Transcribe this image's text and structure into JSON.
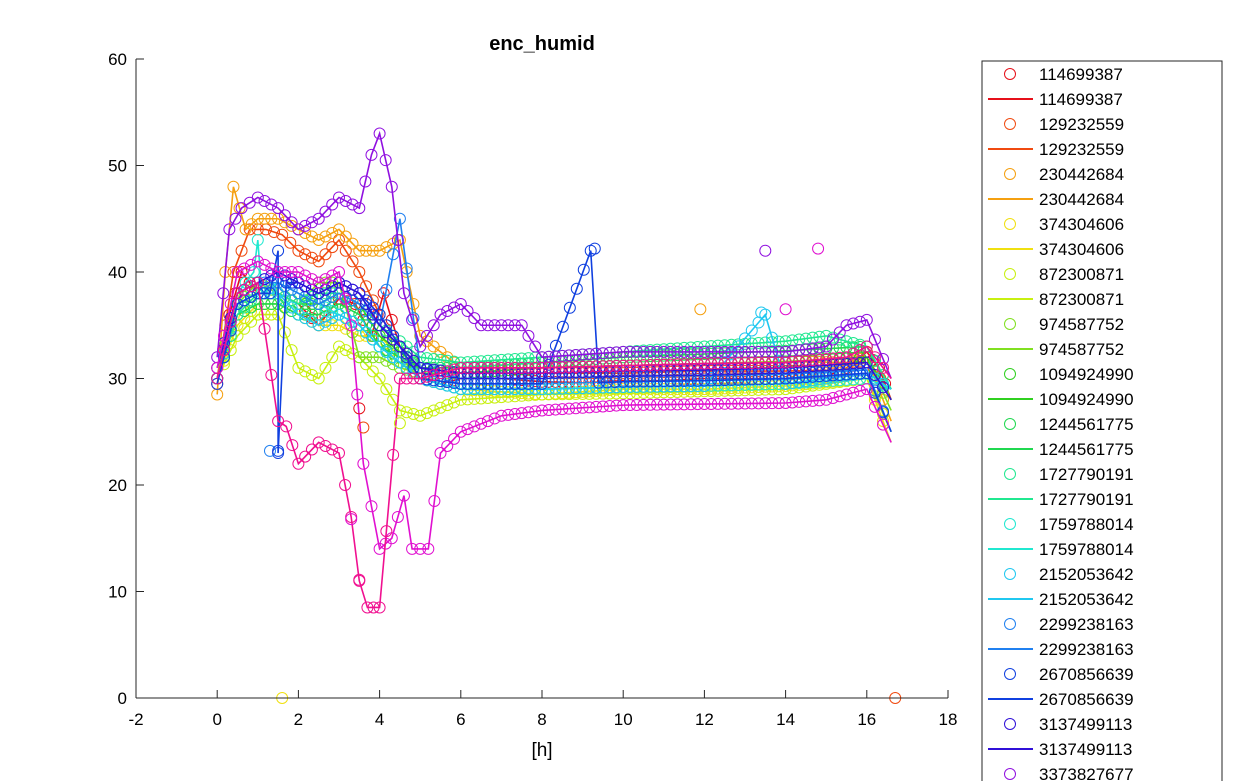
{
  "chart_data": {
    "type": "scatter",
    "title": "enc_humid",
    "xlabel": "[h]",
    "ylabel": "",
    "xlim": [
      -2,
      18
    ],
    "ylim": [
      0,
      60
    ],
    "x_ticks": [
      "-2",
      "0",
      "2",
      "4",
      "6",
      "8",
      "10",
      "12",
      "14",
      "16",
      "18"
    ],
    "y_ticks": [
      "0",
      "10",
      "20",
      "30",
      "40",
      "50",
      "60"
    ],
    "grid": false,
    "legend_position": "right-outside",
    "legend": [
      {
        "label": "114699387",
        "marker": "circle",
        "color": "#e6101a"
      },
      {
        "label": "114699387",
        "marker": "line",
        "color": "#e6101a"
      },
      {
        "label": "129232559",
        "marker": "circle",
        "color": "#f04a10"
      },
      {
        "label": "129232559",
        "marker": "line",
        "color": "#f04a10"
      },
      {
        "label": "230442684",
        "marker": "circle",
        "color": "#f5a010"
      },
      {
        "label": "230442684",
        "marker": "line",
        "color": "#f5a010"
      },
      {
        "label": "374304606",
        "marker": "circle",
        "color": "#f0e010"
      },
      {
        "label": "374304606",
        "marker": "line",
        "color": "#f0e010"
      },
      {
        "label": "872300871",
        "marker": "circle",
        "color": "#c8f010"
      },
      {
        "label": "872300871",
        "marker": "line",
        "color": "#c8f010"
      },
      {
        "label": "974587752",
        "marker": "circle",
        "color": "#80e020"
      },
      {
        "label": "974587752",
        "marker": "line",
        "color": "#80e020"
      },
      {
        "label": "1094924990",
        "marker": "circle",
        "color": "#30d020"
      },
      {
        "label": "1094924990",
        "marker": "line",
        "color": "#30d020"
      },
      {
        "label": "1244561775",
        "marker": "circle",
        "color": "#20d850"
      },
      {
        "label": "1244561775",
        "marker": "line",
        "color": "#20d850"
      },
      {
        "label": "1727790191",
        "marker": "circle",
        "color": "#20e890"
      },
      {
        "label": "1727790191",
        "marker": "line",
        "color": "#20e890"
      },
      {
        "label": "1759788014",
        "marker": "circle",
        "color": "#20e8d0"
      },
      {
        "label": "1759788014",
        "marker": "line",
        "color": "#20e8d0"
      },
      {
        "label": "2152053642",
        "marker": "circle",
        "color": "#20c8f0"
      },
      {
        "label": "2152053642",
        "marker": "line",
        "color": "#20c8f0"
      },
      {
        "label": "2299238163",
        "marker": "circle",
        "color": "#2080f0"
      },
      {
        "label": "2299238163",
        "marker": "line",
        "color": "#2080f0"
      },
      {
        "label": "2670856639",
        "marker": "circle",
        "color": "#1040e0"
      },
      {
        "label": "2670856639",
        "marker": "line",
        "color": "#1040e0"
      },
      {
        "label": "3137499113",
        "marker": "circle",
        "color": "#3010d8"
      },
      {
        "label": "3137499113",
        "marker": "line",
        "color": "#3010d8"
      },
      {
        "label": "3373827677",
        "marker": "circle",
        "color": "#9010e0"
      }
    ],
    "series": [
      {
        "color": "#e6101a",
        "x": [
          0,
          0.3,
          0.6,
          1,
          1.5,
          2,
          2.5,
          3,
          3.4,
          3.8,
          4.1,
          4.5,
          5,
          5.5,
          6,
          7,
          8,
          9,
          10,
          11,
          12,
          13,
          14,
          15,
          15.5,
          16,
          16.3,
          16.6
        ],
        "y": [
          29.5,
          36,
          40,
          38,
          38,
          37,
          35,
          37.5,
          37,
          34,
          38,
          33,
          30,
          29.5,
          30,
          30,
          29.7,
          29.6,
          29.8,
          29.8,
          30,
          30,
          30,
          30.2,
          31,
          32.5,
          31,
          28
        ]
      },
      {
        "color": "#f04a10",
        "x": [
          0,
          0.4,
          0.8,
          1.2,
          1.6,
          2,
          2.5,
          3,
          3.5,
          4,
          4.5,
          5,
          6,
          8,
          10,
          12,
          14,
          15.5,
          16,
          16.5
        ],
        "y": [
          30,
          40,
          44,
          44,
          43.5,
          42,
          41,
          43,
          40,
          36,
          33,
          31,
          30.5,
          30.5,
          30.5,
          30.7,
          30.7,
          30.8,
          32,
          29
        ]
      },
      {
        "color": "#f5a010",
        "x": [
          0,
          0.2,
          0.4,
          0.7,
          1,
          1.5,
          2,
          2.5,
          3,
          3.5,
          4,
          4.5,
          5,
          6,
          8,
          10,
          12,
          14,
          15.5,
          16,
          16.6
        ],
        "y": [
          28.5,
          40,
          48,
          44,
          45,
          45,
          44,
          43,
          44,
          42,
          42,
          43,
          34,
          31,
          31,
          31.2,
          31.4,
          31.6,
          31.5,
          32,
          26
        ]
      },
      {
        "color": "#f0e010",
        "x": [
          0,
          0.5,
          1,
          1.5,
          2,
          2.5,
          3,
          3.5,
          4,
          5,
          6,
          8,
          10,
          12,
          14,
          16,
          16.6
        ],
        "y": [
          30,
          35,
          37,
          37,
          36,
          35,
          35,
          34,
          34,
          30,
          29,
          28.5,
          29,
          29,
          29.3,
          30,
          24
        ]
      },
      {
        "color": "#c8f010",
        "x": [
          0,
          0.5,
          1,
          1.5,
          2,
          2.5,
          3,
          3.5,
          4,
          4.5,
          5,
          6,
          8,
          10,
          12,
          14,
          16,
          16.6
        ],
        "y": [
          30,
          34,
          36,
          36,
          31,
          30,
          33,
          32,
          30,
          27,
          26.5,
          28,
          28.5,
          28.6,
          28.8,
          29,
          30,
          25
        ]
      },
      {
        "color": "#80e020",
        "x": [
          0,
          0.5,
          1,
          1.5,
          2,
          2.5,
          3,
          3.5,
          4,
          4.5,
          5,
          6,
          8,
          10,
          12,
          14,
          16,
          16.6
        ],
        "y": [
          31,
          37,
          39,
          38,
          37,
          39,
          39,
          32,
          32,
          31,
          30.5,
          30.5,
          31,
          31.2,
          31.4,
          31.6,
          32,
          27
        ]
      },
      {
        "color": "#30d020",
        "x": [
          0,
          0.5,
          1,
          1.5,
          2,
          2.5,
          3,
          3.5,
          4,
          5,
          6,
          8,
          10,
          12,
          14,
          16,
          16.6
        ],
        "y": [
          30,
          37,
          38,
          38,
          37,
          37,
          38,
          37,
          34,
          31,
          30.5,
          31,
          31.2,
          31.4,
          31.5,
          32,
          28
        ]
      },
      {
        "color": "#20d850",
        "x": [
          0,
          0.5,
          1,
          1.5,
          2,
          2.5,
          3,
          3.5,
          4,
          5,
          6,
          8,
          10,
          12,
          14,
          16,
          16.6
        ],
        "y": [
          30,
          36,
          37,
          37,
          36,
          36,
          37,
          36,
          33,
          31,
          31,
          31.5,
          32,
          32.3,
          32.6,
          33,
          29
        ]
      },
      {
        "color": "#20e890",
        "x": [
          0,
          0.5,
          1,
          1.5,
          2,
          2.5,
          3,
          3.5,
          4,
          5,
          6,
          8,
          10,
          12,
          14,
          15,
          16,
          16.6
        ],
        "y": [
          30,
          36,
          38,
          38,
          37,
          38,
          38,
          37,
          35,
          32,
          31.5,
          32,
          32.5,
          33,
          33.5,
          34,
          33,
          29
        ]
      },
      {
        "color": "#20e8d0",
        "x": [
          0,
          0.5,
          0.9,
          1,
          1.1,
          1.5,
          2,
          2.5,
          3,
          3.5,
          4,
          5,
          6,
          8,
          10,
          12,
          14,
          16,
          16.6
        ],
        "y": [
          30,
          38,
          40,
          43,
          38,
          39,
          38,
          37,
          36,
          35,
          33,
          30,
          29,
          29,
          29.2,
          29.3,
          29.5,
          30,
          29
        ]
      },
      {
        "color": "#20c8f0",
        "x": [
          0,
          0.5,
          1,
          1.5,
          2,
          2.5,
          3,
          3.5,
          4,
          5,
          6,
          8,
          10,
          12,
          13.5,
          14,
          16,
          16.6
        ],
        "y": [
          30,
          37,
          38,
          38,
          36,
          35,
          36,
          35,
          33,
          30,
          29,
          29,
          29.2,
          29.3,
          36,
          29.5,
          30.5,
          29
        ]
      },
      {
        "color": "#2080f0",
        "x": [
          0,
          0.5,
          1,
          1.5,
          2,
          2.5,
          3,
          3.5,
          4,
          4.5,
          5,
          6,
          8,
          10,
          12,
          14,
          16,
          16.6
        ],
        "y": [
          30,
          38,
          39,
          39,
          38,
          37,
          38,
          37,
          35,
          45,
          31,
          30,
          30,
          30.2,
          30.3,
          30.4,
          30.8,
          25
        ]
      },
      {
        "color": "#1040e0",
        "x": [
          0,
          0.5,
          1,
          1.3,
          1.5,
          1.5,
          1.7,
          2,
          2.5,
          3,
          3.5,
          4,
          5,
          6,
          8,
          9.2,
          9.4,
          10,
          12,
          14,
          16,
          16.6
        ],
        "y": [
          29.5,
          37,
          38,
          38,
          42,
          23,
          39,
          39,
          38,
          39,
          38,
          36,
          30,
          29.5,
          29.5,
          42,
          29.6,
          29.7,
          29.8,
          30,
          30.5,
          25
        ]
      },
      {
        "color": "#3010d8",
        "x": [
          0,
          0.5,
          1,
          1.5,
          2,
          2.5,
          3,
          3.5,
          4,
          5,
          6,
          8,
          10,
          12,
          14,
          16,
          16.6
        ],
        "y": [
          31,
          38,
          39,
          40,
          39,
          38,
          39,
          38,
          35,
          31,
          30.5,
          30.5,
          30.7,
          30.8,
          31,
          31.5,
          28
        ]
      },
      {
        "color": "#9010e0",
        "x": [
          0,
          0.3,
          0.6,
          1,
          1.5,
          2,
          2.5,
          3,
          3.5,
          3.8,
          4,
          4.3,
          4.6,
          5,
          5.5,
          6,
          6.5,
          7.5,
          8,
          10,
          12,
          14,
          15,
          15.5,
          16,
          16.6
        ],
        "y": [
          32,
          44,
          46,
          47,
          46,
          44,
          45,
          47,
          46,
          51,
          53,
          48,
          38,
          33,
          36,
          37,
          35,
          35,
          32,
          32.5,
          32.5,
          32.5,
          33,
          35,
          35.5,
          30
        ]
      },
      {
        "color": "#e010d0",
        "x": [
          0,
          0.5,
          1,
          1.5,
          2,
          2.5,
          3,
          3.3,
          3.6,
          4,
          4.3,
          4.6,
          4.8,
          5,
          5.2,
          5.5,
          6,
          7,
          8,
          10,
          12,
          14,
          15,
          16,
          16.6
        ],
        "y": [
          31,
          40,
          41,
          40,
          40,
          39,
          40,
          35,
          22,
          14,
          15,
          19,
          14,
          14,
          14,
          23,
          25,
          26.5,
          27,
          27.5,
          27.6,
          27.7,
          28,
          29,
          24
        ]
      },
      {
        "color": "#f01090",
        "x": [
          0,
          0.5,
          1,
          1.5,
          1.7,
          2,
          2.5,
          3,
          3.3,
          3.5,
          3.7,
          4,
          4.5,
          5,
          5.5,
          6,
          8,
          10,
          12,
          14,
          15.5,
          16,
          16.6
        ],
        "y": [
          30,
          38,
          39,
          26,
          25.5,
          22,
          24,
          23,
          17,
          11,
          8.5,
          8.5,
          30,
          30,
          30.5,
          31,
          31,
          31.2,
          31.4,
          31.5,
          32,
          33,
          30
        ]
      }
    ],
    "scattered_points": [
      {
        "color": "#f0e010",
        "x": 1.6,
        "y": 0
      },
      {
        "color": "#f04a10",
        "x": 16.7,
        "y": 0
      },
      {
        "color": "#f5a010",
        "x": 11.9,
        "y": 36.5
      },
      {
        "color": "#9010e0",
        "x": 13.5,
        "y": 42
      },
      {
        "color": "#e010d0",
        "x": 14.8,
        "y": 42.2
      },
      {
        "color": "#e010d0",
        "x": 14.0,
        "y": 36.5
      },
      {
        "color": "#20c8f0",
        "x": 13.4,
        "y": 36.2
      },
      {
        "color": "#1040e0",
        "x": 9.3,
        "y": 42.2
      },
      {
        "color": "#2080f0",
        "x": 1.3,
        "y": 23.2
      },
      {
        "color": "#1040e0",
        "x": 1.5,
        "y": 23.2
      },
      {
        "color": "#e6101a",
        "x": 3.5,
        "y": 27.2
      },
      {
        "color": "#f04a10",
        "x": 3.6,
        "y": 25.4
      },
      {
        "color": "#c8f010",
        "x": 4.5,
        "y": 25.8
      },
      {
        "color": "#e010d0",
        "x": 3.3,
        "y": 16.8
      },
      {
        "color": "#f01090",
        "x": 3.5,
        "y": 11.1
      }
    ]
  }
}
